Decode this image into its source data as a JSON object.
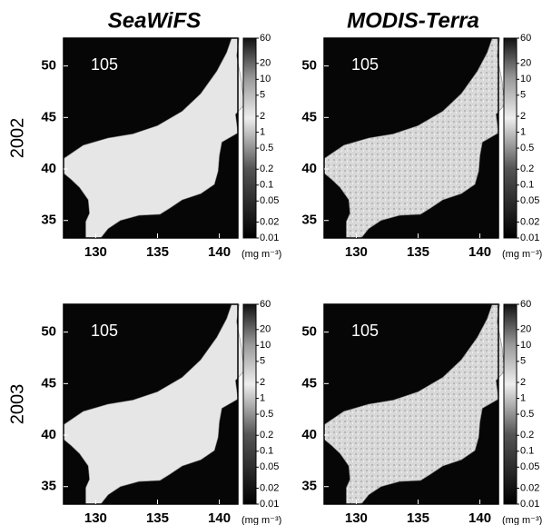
{
  "column_titles": [
    "SeaWiFS",
    "MODIS-Terra"
  ],
  "row_labels": [
    "2002",
    "2003"
  ],
  "panels": [
    {
      "day": "105"
    },
    {
      "day": "105"
    },
    {
      "day": "105"
    },
    {
      "day": "105"
    }
  ],
  "lat_lim": [
    33.3,
    52.7
  ],
  "lon_lim": [
    127.4,
    141.5
  ],
  "lat_ticks": [
    35,
    40,
    45,
    50
  ],
  "lon_ticks": [
    130,
    135,
    140
  ],
  "colorbar": {
    "lim": [
      0.01,
      60
    ],
    "scale": "log",
    "ticks": [
      0.01,
      0.02,
      0.05,
      0.1,
      0.2,
      0.5,
      1,
      2,
      5,
      10,
      20,
      60
    ]
  },
  "unit": "(mg m⁻³)"
}
